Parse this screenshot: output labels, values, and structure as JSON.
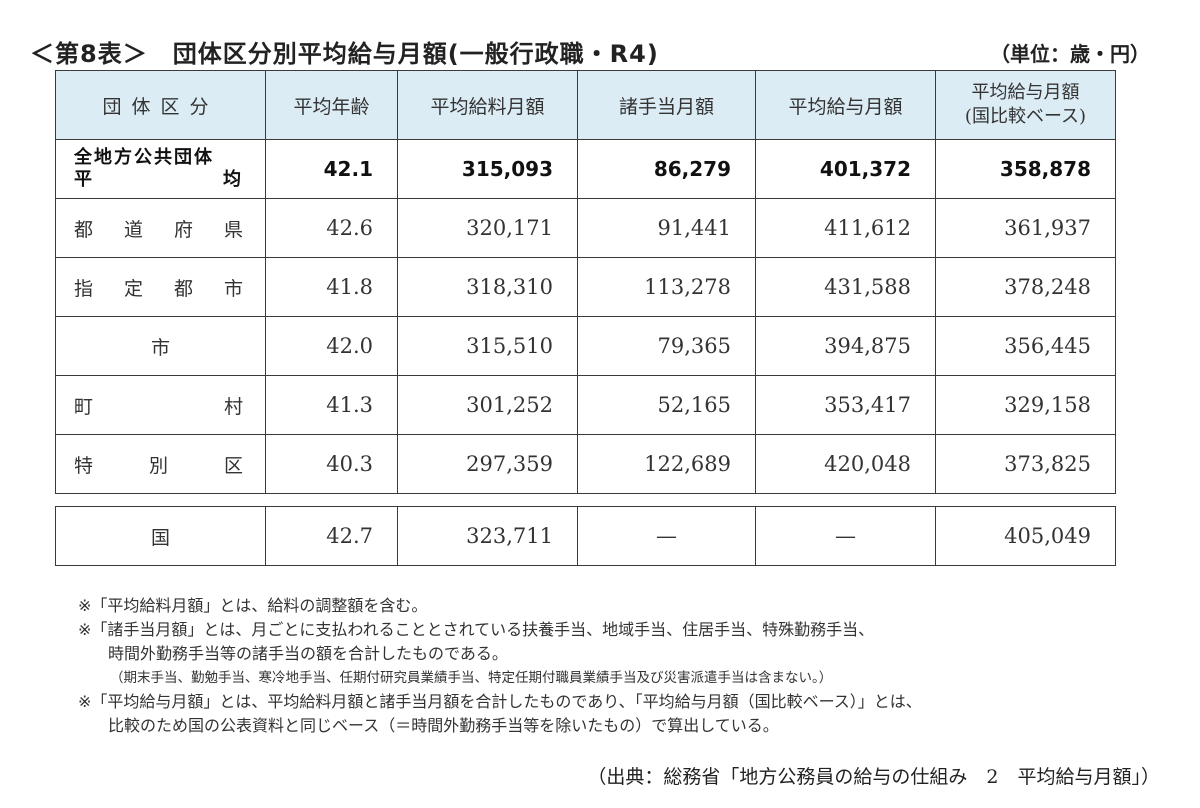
{
  "title": "＜第8表＞　団体区分別平均給与月額(一般行政職・R4)",
  "unit": "（単位：歳・円）",
  "headers": [
    "団体区分",
    "平均年齢",
    "平均給料月額",
    "諸手当月額",
    "平均給与月額",
    "平均給与月額",
    "(国比較ベース)"
  ],
  "total": {
    "label_line1": "全地方公共団体",
    "label_line2_left": "平",
    "label_line2_right": "均",
    "values": [
      "42.1",
      "315,093",
      "86,279",
      "401,372",
      "358,878"
    ]
  },
  "rows": [
    {
      "label": "都道府県",
      "values": [
        "42.6",
        "320,171",
        "91,441",
        "411,612",
        "361,937"
      ]
    },
    {
      "label": "指定都市",
      "values": [
        "41.8",
        "318,310",
        "113,278",
        "431,588",
        "378,248"
      ]
    },
    {
      "label": "市",
      "values": [
        "42.0",
        "315,510",
        "79,365",
        "394,875",
        "356,445"
      ]
    },
    {
      "label": "町村",
      "values": [
        "41.3",
        "301,252",
        "52,165",
        "353,417",
        "329,158"
      ]
    },
    {
      "label": "特別区",
      "values": [
        "40.3",
        "297,359",
        "122,689",
        "420,048",
        "373,825"
      ]
    }
  ],
  "national": {
    "label": "国",
    "values": [
      "42.7",
      "323,711",
      "—",
      "—",
      "405,049"
    ]
  },
  "notes": [
    "※「平均給料月額」とは、給料の調整額を含む。",
    "※「諸手当月額」とは、月ごとに支払われることとされている扶養手当、地域手当、住居手当、特殊勤務手当、",
    "時間外勤務手当等の諸手当の額を合計したものである。",
    "（期末手当、勤勉手当、寒冷地手当、任期付研究員業績手当、特定任期付職員業績手当及び災害派遣手当は含まない。）",
    "※「平均給与月額」とは、平均給料月額と諸手当月額を合計したものであり、「平均給与月額（国比較ベース）」とは、",
    "比較のため国の公表資料と同じベース（＝時間外勤務手当等を除いたもの）で算出している。"
  ],
  "source": "（出典：総務省「地方公務員の給与の仕組み　2　平均給与月額」）"
}
